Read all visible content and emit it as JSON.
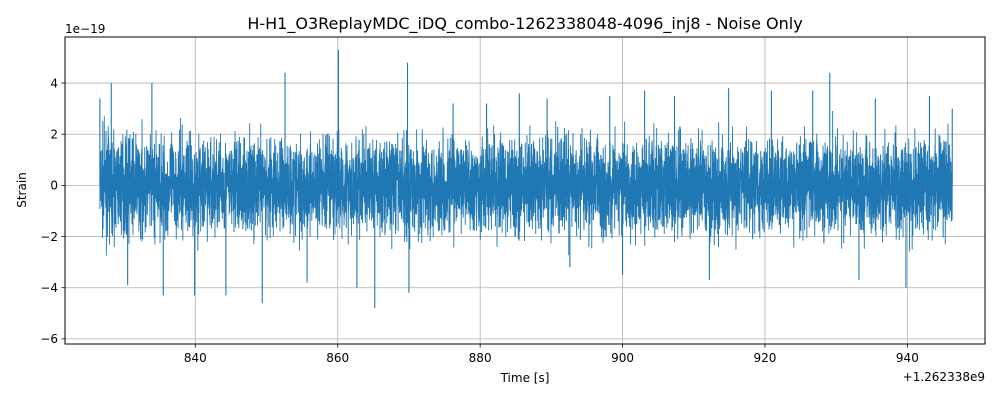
{
  "chart_data": {
    "type": "line",
    "title": "H-H1_O3ReplayMDC_iDQ_combo-1262338048-4096_inj8 - Noise Only",
    "xlabel": "Time [s]",
    "ylabel": "Strain",
    "x_offset_label": "+1.262338e9",
    "y_exponent_label": "1e−19",
    "xlim": [
      821.7,
      950.9
    ],
    "ylim": [
      -6.2,
      5.8
    ],
    "grid": true,
    "series_color": "#1f77b4",
    "x_ticks": [
      840,
      860,
      880,
      900,
      920,
      940
    ],
    "x_tick_labels": [
      "840",
      "860",
      "880",
      "900",
      "920",
      "940"
    ],
    "y_ticks": [
      -6,
      -4,
      -2,
      0,
      2,
      4
    ],
    "y_tick_labels": [
      "−6",
      "−4",
      "−2",
      "0",
      "2",
      "4"
    ],
    "series": [
      {
        "x": [
          826.6,
          828.2,
          830.5,
          833.9,
          835.5,
          839.9,
          844.3,
          849.4,
          852.6,
          855.7,
          860.1,
          862.7,
          865.2,
          869.8,
          870.0,
          876.2,
          880.9,
          885.5,
          889.4,
          892.6,
          898.2,
          900.0,
          903.1,
          907.3,
          912.2,
          914.9,
          920.9,
          926.7,
          929.1,
          933.2,
          935.5,
          939.8,
          943.1,
          946.3
        ],
        "y": [
          3.4,
          4.0,
          -3.9,
          4.0,
          -4.3,
          -4.3,
          -4.3,
          -4.6,
          4.4,
          -3.8,
          5.3,
          -4.0,
          -4.8,
          4.8,
          -4.2,
          3.2,
          3.2,
          3.6,
          3.4,
          -3.2,
          3.5,
          -3.5,
          3.7,
          3.5,
          -3.7,
          3.8,
          3.7,
          3.7,
          4.4,
          -3.7,
          3.4,
          -4.0,
          3.5,
          3.0
        ]
      }
    ]
  }
}
